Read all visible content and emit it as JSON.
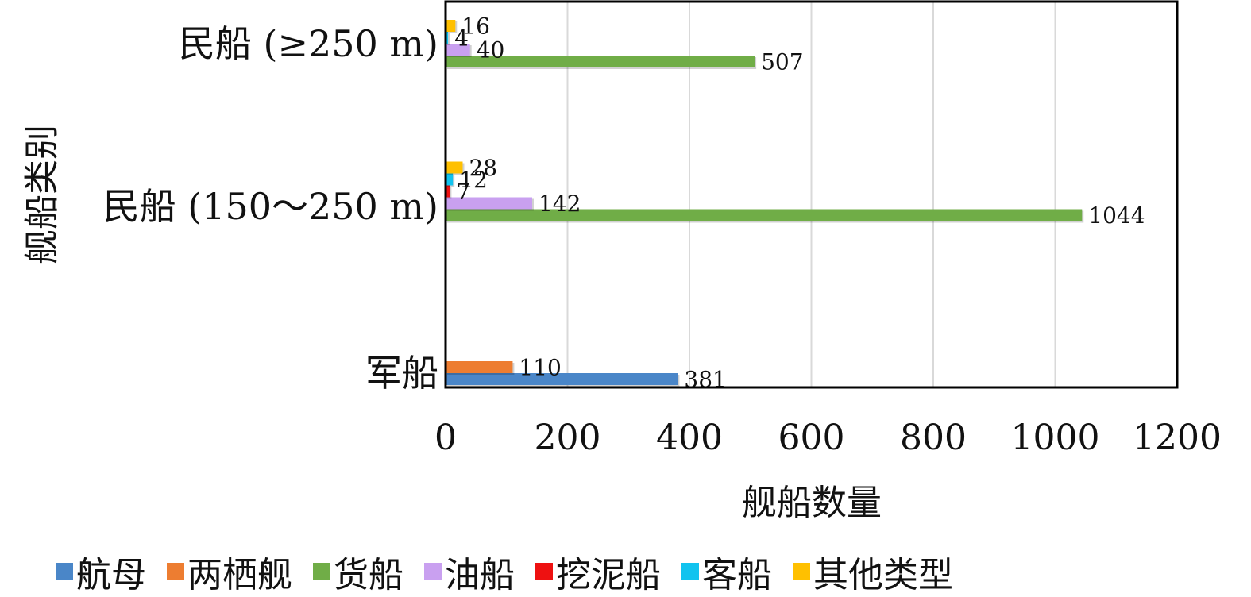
{
  "chart_data": {
    "type": "bar",
    "orientation": "horizontal",
    "xlabel": "舰船数量",
    "ylabel": "舰船类别",
    "xlim": [
      0,
      1200
    ],
    "xticks": [
      0,
      200,
      400,
      600,
      800,
      1000,
      1200
    ],
    "grid": "vertical",
    "legend_position": "bottom",
    "categories": [
      "军船",
      "民船 (150～250 m)",
      "民船 (≥250 m)"
    ],
    "series": [
      {
        "name": "航母",
        "color": "#4a86c8",
        "values": [
          381,
          null,
          null
        ]
      },
      {
        "name": "两栖舰",
        "color": "#ed7d31",
        "values": [
          110,
          null,
          null
        ]
      },
      {
        "name": "货船",
        "color": "#70ad47",
        "values": [
          null,
          1044,
          507
        ]
      },
      {
        "name": "油船",
        "color": "#c9a0f0",
        "values": [
          null,
          142,
          40
        ]
      },
      {
        "name": "挖泥船",
        "color": "#ee1111",
        "values": [
          null,
          7,
          null
        ]
      },
      {
        "name": "客船",
        "color": "#11c3ef",
        "values": [
          null,
          12,
          4
        ]
      },
      {
        "name": "其他类型",
        "color": "#ffc000",
        "values": [
          null,
          28,
          16
        ]
      }
    ]
  }
}
